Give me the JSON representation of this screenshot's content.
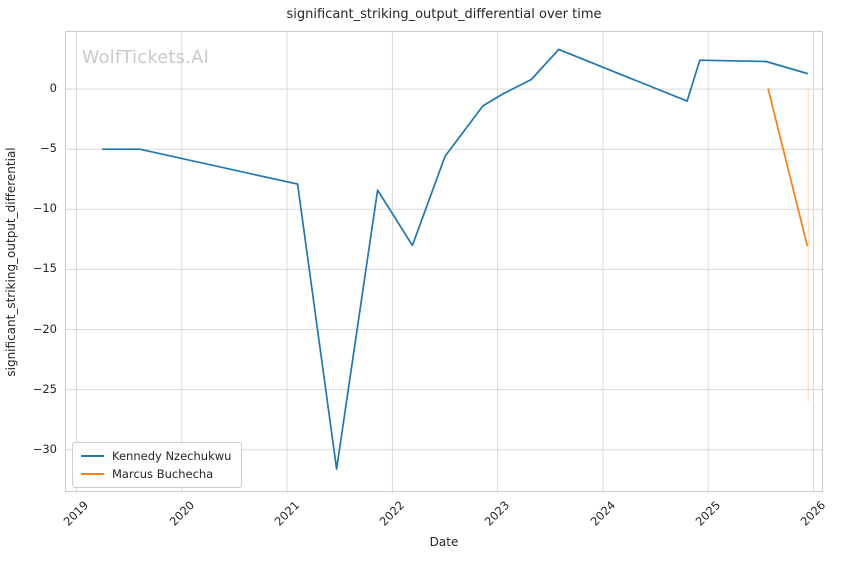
{
  "chart_data": {
    "type": "line",
    "title": "significant_striking_output_differential over time",
    "xlabel": "Date",
    "ylabel": "significant_striking_output_differential",
    "watermark": "WolfTickets.AI",
    "axes": {
      "xlim": [
        2018.9,
        2026.1
      ],
      "ylim": [
        -33.6,
        4.75
      ],
      "xticks": [
        2019,
        2020,
        2021,
        2022,
        2023,
        2024,
        2025,
        2026
      ],
      "xtick_labels": [
        "2019",
        "2020",
        "2021",
        "2022",
        "2023",
        "2024",
        "2025",
        "2026"
      ],
      "yticks": [
        0,
        -5,
        -10,
        -15,
        -20,
        -25,
        -30
      ],
      "ytick_labels": [
        "0",
        "−5",
        "−10",
        "−15",
        "−20",
        "−25",
        "−30"
      ],
      "grid": true
    },
    "legend": {
      "position": "lower left",
      "entries": [
        "Kennedy Nzechukwu",
        "Marcus Buchecha"
      ]
    },
    "series": [
      {
        "name": "Kennedy Nzechukwu",
        "color": "#1f77b4",
        "points": [
          [
            2019.25,
            -5.0
          ],
          [
            2019.6,
            -5.0
          ],
          [
            2021.1,
            -7.9
          ],
          [
            2021.47,
            -31.6
          ],
          [
            2021.86,
            -8.4
          ],
          [
            2022.19,
            -13.0
          ],
          [
            2022.5,
            -5.6
          ],
          [
            2022.86,
            -1.4
          ],
          [
            2023.05,
            -0.4
          ],
          [
            2023.32,
            0.8
          ],
          [
            2023.58,
            3.3
          ],
          [
            2024.8,
            -1.0
          ],
          [
            2024.92,
            2.4
          ],
          [
            2025.55,
            2.3
          ],
          [
            2025.94,
            1.3
          ]
        ]
      },
      {
        "name": "Marcus Buchecha",
        "color": "#ff7f0e",
        "points": [
          [
            2025.57,
            0.0
          ],
          [
            2025.94,
            -13.0
          ]
        ]
      }
    ],
    "annotations": [
      {
        "type": "faint-vline",
        "x": 2025.95,
        "y_from": 0.0,
        "y_to": -26.0,
        "color": "#ff7f0e",
        "opacity": 0.3
      }
    ]
  },
  "colors": {
    "background": "#ffffff",
    "grid": "#d9d9d9",
    "spine": "#cccccc",
    "text": "#262626",
    "watermark": "#c9c9c9"
  }
}
